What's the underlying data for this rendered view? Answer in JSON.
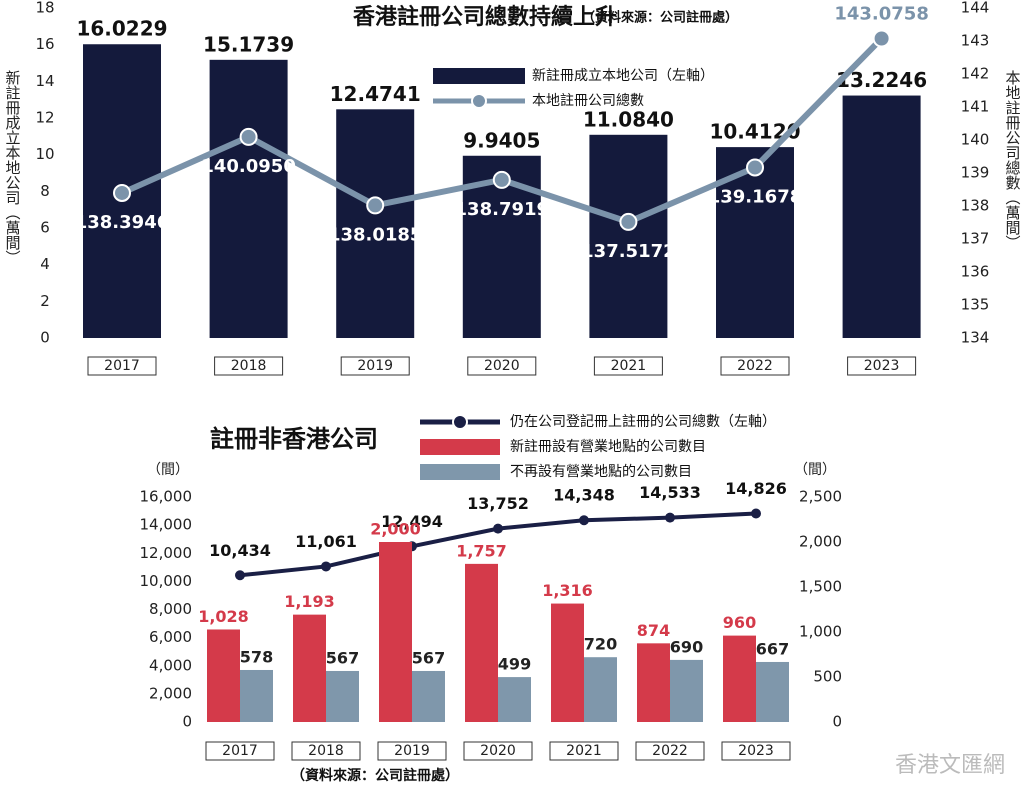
{
  "chart_data": [
    {
      "type": "bar",
      "title": "香港註冊公司總數持續上升",
      "subtitle": "（資料來源：公司註冊處）",
      "ylabel": "新註冊成立本地公司（萬間）",
      "y2label": "本地註冊公司總數（萬間）",
      "categories": [
        "2017",
        "2018",
        "2019",
        "2020",
        "2021",
        "2022",
        "2023"
      ],
      "series": [
        {
          "name": "新註冊成立本地公司（左軸）",
          "type": "bar",
          "color": "#141a3c",
          "values": [
            16.0229,
            15.1739,
            12.4741,
            9.9405,
            11.084,
            10.412,
            13.2246
          ],
          "value_labels": [
            "16.0229",
            "15.1739",
            "12.4741",
            "9.9405",
            "11.0840",
            "10.4120",
            "13.2246"
          ]
        },
        {
          "name": "本地註冊公司總數",
          "type": "line",
          "axis": "y2",
          "color": "#7b93aa",
          "values": [
            138.3946,
            140.095,
            138.0185,
            138.7919,
            137.5172,
            139.1678,
            143.0758
          ],
          "value_labels": [
            "138.3946",
            "140.0950",
            "138.0185",
            "138.7919",
            "137.5172",
            "139.1678",
            "143.0758"
          ]
        }
      ],
      "ylim": [
        0,
        18
      ],
      "yticks": [
        0,
        2,
        4,
        6,
        8,
        10,
        12,
        14,
        16,
        18
      ],
      "y2lim": [
        134,
        144
      ],
      "y2ticks": [
        134,
        135,
        136,
        137,
        138,
        139,
        140,
        141,
        142,
        143,
        144
      ],
      "grid": false
    },
    {
      "type": "bar",
      "title": "註冊非香港公司",
      "y_unit": "（間）",
      "y2_unit": "（間）",
      "source": "（資料來源：公司註冊處）",
      "watermark": "香港文匯網",
      "categories": [
        "2017",
        "2018",
        "2019",
        "2020",
        "2021",
        "2022",
        "2023"
      ],
      "series": [
        {
          "name": "仍在公司登記冊上註冊的公司總數（左軸）",
          "type": "line",
          "color": "#1a1f45",
          "values": [
            10434,
            11061,
            12494,
            13752,
            14348,
            14533,
            14826
          ],
          "value_labels": [
            "10,434",
            "11,061",
            "12,494",
            "13,752",
            "14,348",
            "14,533",
            "14,826"
          ]
        },
        {
          "name": "新註冊設有營業地點的公司數目",
          "type": "bar",
          "axis": "y2",
          "color": "#d43a4a",
          "values": [
            1028,
            1193,
            2000,
            1757,
            1316,
            874,
            960
          ],
          "value_labels": [
            "1,028",
            "1,193",
            "2,000",
            "1,757",
            "1,316",
            "874",
            "960"
          ]
        },
        {
          "name": "不再設有營業地點的公司數目",
          "type": "bar",
          "axis": "y2",
          "color": "#7f97ab",
          "values": [
            578,
            567,
            567,
            499,
            720,
            690,
            667
          ]
        }
      ],
      "ylim": [
        0,
        16000
      ],
      "yticks": [
        0,
        {
          "value": 2000,
          "label": "2,000"
        },
        {
          "value": 4000,
          "label": "4,000"
        },
        {
          "value": 6000,
          "label": "6,000"
        },
        {
          "value": 8000,
          "label": "8,000"
        },
        {
          "value": 10000,
          "label": "10,000"
        },
        {
          "value": 12000,
          "label": "12,000"
        },
        {
          "value": 14000,
          "label": "14,000"
        },
        {
          "value": 16000,
          "label": "16,000"
        }
      ],
      "y2lim": [
        0,
        2500
      ],
      "y2ticks": [
        0,
        500,
        {
          "value": 1000,
          "label": "1,000"
        },
        {
          "value": 1500,
          "label": "1,500"
        },
        {
          "value": 2000,
          "label": "2,000"
        },
        {
          "value": 2500,
          "label": "2,500"
        }
      ],
      "grid": false
    }
  ]
}
